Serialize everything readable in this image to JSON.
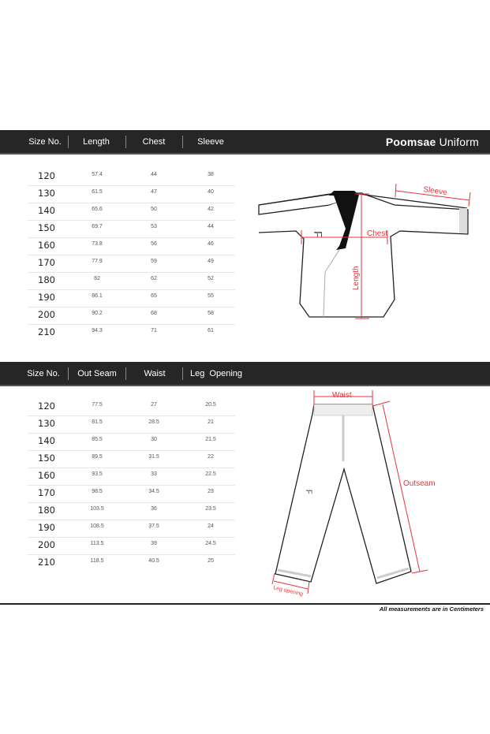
{
  "jacket": {
    "title_bold": "Poomsae",
    "title_rest": "Uniform",
    "headers": [
      "Size No.",
      "Length",
      "Chest",
      "Sleeve"
    ],
    "rows": [
      [
        "120",
        "57.4",
        "44",
        "38"
      ],
      [
        "130",
        "61.5",
        "47",
        "40"
      ],
      [
        "140",
        "65.6",
        "50",
        "42"
      ],
      [
        "150",
        "69.7",
        "53",
        "44"
      ],
      [
        "160",
        "73.8",
        "56",
        "46"
      ],
      [
        "170",
        "77.9",
        "59",
        "49"
      ],
      [
        "180",
        "82",
        "62",
        "52"
      ],
      [
        "190",
        "86.1",
        "65",
        "55"
      ],
      [
        "200",
        "90.2",
        "68",
        "58"
      ],
      [
        "210",
        "94.3",
        "71",
        "61"
      ]
    ],
    "labels": {
      "sleeve": "Sleeve",
      "chest": "Chest",
      "length": "Length"
    }
  },
  "pants": {
    "headers": [
      "Size No.",
      "Out Seam",
      "Waist",
      "Leg  Opening"
    ],
    "rows": [
      [
        "120",
        "77.5",
        "27",
        "20.5"
      ],
      [
        "130",
        "81.5",
        "28.5",
        "21"
      ],
      [
        "140",
        "85.5",
        "30",
        "21.5"
      ],
      [
        "150",
        "89.5",
        "31.5",
        "22"
      ],
      [
        "160",
        "93.5",
        "33",
        "22.5"
      ],
      [
        "170",
        "98.5",
        "34.5",
        "23"
      ],
      [
        "180",
        "103.5",
        "36",
        "23.5"
      ],
      [
        "190",
        "108.5",
        "37.5",
        "24"
      ],
      [
        "200",
        "113.5",
        "39",
        "24.5"
      ],
      [
        "210",
        "118.5",
        "40.5",
        "25"
      ]
    ],
    "labels": {
      "waist": "Waist",
      "outseam": "Outseam",
      "leg_opening": "Leg opening"
    }
  },
  "footer": "All measurements are in Centimeters",
  "colors": {
    "header_bg": "#262626",
    "measure": "#e8323c"
  }
}
